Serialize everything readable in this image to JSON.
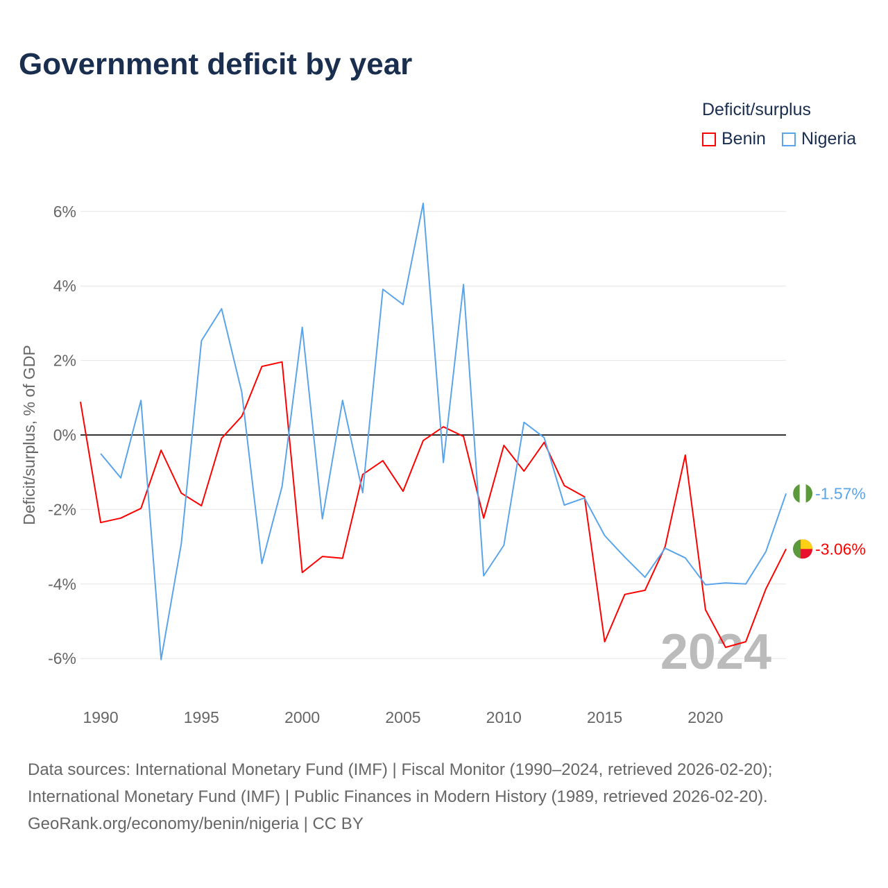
{
  "title": "Government deficit by year",
  "legend": {
    "title": "Deficit/surplus",
    "items": [
      {
        "name": "Benin",
        "color": "#ff0000"
      },
      {
        "name": "Nigeria",
        "color": "#5aa5ea"
      }
    ]
  },
  "year_label": "2024",
  "source": {
    "line1": "Data sources: International Monetary Fund (IMF) | Fiscal Monitor (1990–2024, retrieved 2026-02-20);",
    "line2": "International Monetary Fund (IMF) | Public Finances in Modern History (1989, retrieved 2026-02-20).",
    "line3": "GeoRank.org/economy/benin/nigeria | CC BY"
  },
  "chart_data": {
    "type": "line",
    "ylabel": "Deficit/surplus, % of GDP",
    "xlabel": "",
    "ylim": [
      -7,
      7
    ],
    "xlim": [
      1989,
      2024
    ],
    "yticks": [
      -6,
      -4,
      -2,
      0,
      2,
      4,
      6
    ],
    "ytick_labels": [
      "-6%",
      "-4%",
      "-2%",
      "0%",
      "2%",
      "4%",
      "6%"
    ],
    "xticks": [
      1990,
      1995,
      2000,
      2005,
      2010,
      2015,
      2020
    ],
    "xtick_labels": [
      "1990",
      "1995",
      "2000",
      "2005",
      "2010",
      "2015",
      "2020"
    ],
    "series": [
      {
        "name": "Benin",
        "color": "#ff0000",
        "end_label": "-3.06%",
        "start_year": 1989,
        "values": [
          0.89,
          -2.35,
          -2.23,
          -1.97,
          -0.41,
          -1.56,
          -1.9,
          -0.09,
          0.5,
          1.84,
          1.96,
          -3.69,
          -3.26,
          -3.31,
          -1.06,
          -0.69,
          -1.51,
          -0.15,
          0.22,
          -0.04,
          -2.23,
          -0.28,
          -0.97,
          -0.2,
          -1.36,
          -1.66,
          -5.55,
          -4.28,
          -4.17,
          -3.0,
          -0.54,
          -4.69,
          -5.7,
          -5.55,
          -4.13,
          -3.06
        ]
      },
      {
        "name": "Nigeria",
        "color": "#5aa5ea",
        "end_label": "-1.57%",
        "start_year": 1990,
        "values": [
          -0.5,
          -1.15,
          0.93,
          -6.03,
          -2.92,
          2.53,
          3.39,
          1.15,
          -3.45,
          -1.38,
          2.89,
          -2.25,
          0.93,
          -1.55,
          3.91,
          3.5,
          6.22,
          -0.74,
          4.04,
          -3.78,
          -2.96,
          0.34,
          -0.07,
          -1.88,
          -1.69,
          -2.7,
          -3.28,
          -3.82,
          -3.04,
          -3.3,
          -4.02,
          -3.97,
          -4.0,
          -3.13,
          -1.57
        ]
      }
    ]
  }
}
